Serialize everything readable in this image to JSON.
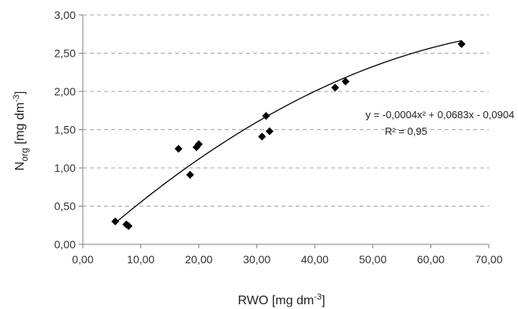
{
  "chart_data": {
    "type": "scatter",
    "title": "",
    "xlabel": {
      "main": "RWO [mg dm",
      "sup": "-3",
      "close": "]"
    },
    "ylabel": {
      "main": "N",
      "sub": "org",
      "mid": " [mg dm",
      "sup": "-3",
      "close": "]"
    },
    "xlim": [
      0,
      70
    ],
    "ylim": [
      0,
      3
    ],
    "x_ticks": [
      "0,00",
      "10,00",
      "20,00",
      "30,00",
      "40,00",
      "50,00",
      "60,00",
      "70,00"
    ],
    "y_ticks": [
      "0,00",
      "0,50",
      "1,00",
      "1,50",
      "2,00",
      "2,50",
      "3,00"
    ],
    "grid": "horizontal dashed",
    "legend": "none",
    "points": [
      {
        "x": 5.6,
        "y": 0.3
      },
      {
        "x": 7.5,
        "y": 0.26
      },
      {
        "x": 7.9,
        "y": 0.24
      },
      {
        "x": 16.5,
        "y": 1.25
      },
      {
        "x": 18.5,
        "y": 0.91
      },
      {
        "x": 19.6,
        "y": 1.27
      },
      {
        "x": 20.0,
        "y": 1.31
      },
      {
        "x": 30.9,
        "y": 1.41
      },
      {
        "x": 31.6,
        "y": 1.68
      },
      {
        "x": 32.2,
        "y": 1.48
      },
      {
        "x": 43.5,
        "y": 2.05
      },
      {
        "x": 45.3,
        "y": 2.13
      },
      {
        "x": 65.3,
        "y": 2.62
      }
    ],
    "trendline": {
      "type": "polynomial",
      "coefficients": {
        "a": -0.0004,
        "b": 0.0683,
        "c": -0.0904
      },
      "x_range": [
        5.6,
        65.3
      ],
      "equation_label": "y = -0,0004x² + 0,0683x - 0,0904",
      "r2_label": "R² = 0,95"
    },
    "colors": {
      "marker": "#000000",
      "grid": "#a6a6a6",
      "axis": "#7f7f7f",
      "trend": "#000000"
    }
  }
}
